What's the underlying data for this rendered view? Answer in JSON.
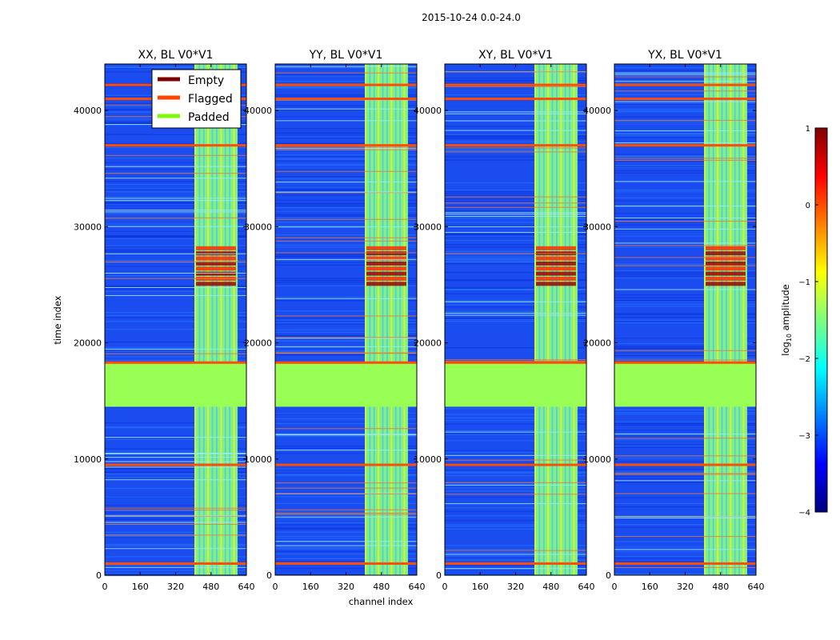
{
  "chart_data": {
    "type": "heatmap",
    "suptitle": "2015-10-24 0.0-24.0",
    "panels": [
      {
        "title": "XX, BL V0*V1",
        "product": "XX"
      },
      {
        "title": "YY, BL V0*V1",
        "product": "YY"
      },
      {
        "title": "XY, BL V0*V1",
        "product": "XY"
      },
      {
        "title": "YX, BL V0*V1",
        "product": "YX"
      }
    ],
    "xlabel": "channel index",
    "ylabel": "time index",
    "xlim": [
      0,
      640
    ],
    "ylim": [
      0,
      44000
    ],
    "xticks": [
      0,
      160,
      320,
      480,
      640
    ],
    "yticks": [
      0,
      10000,
      20000,
      30000,
      40000
    ],
    "legend": {
      "location": "top-right of first panel",
      "entries": [
        {
          "label": "Empty",
          "color": "#7f0000"
        },
        {
          "label": "Flagged",
          "color": "#ff4500"
        },
        {
          "label": "Padded",
          "color": "#7cfc00"
        }
      ]
    },
    "colorbar": {
      "label": "log10 amplitude",
      "label_base": "log",
      "label_sub": "10",
      "label_rest": " amplitude",
      "range": [
        -4,
        1
      ],
      "ticks": [
        "1",
        "0",
        "−1",
        "−2",
        "−3",
        "−4"
      ],
      "tick_values": [
        1,
        0,
        -1,
        -2,
        -3,
        -4
      ],
      "colormap": "jet"
    },
    "padded_region_time": [
      14500,
      18300
    ],
    "rfi_band_channels": [
      405,
      600
    ],
    "rfi_hot_time": [
      25000,
      28500
    ],
    "flagged_times": [
      37000,
      41000,
      42200,
      18300,
      9500,
      1000
    ],
    "colors": {
      "padded": "#99ff55",
      "flagged": "#ff4e00",
      "background": "#ffffff"
    }
  }
}
